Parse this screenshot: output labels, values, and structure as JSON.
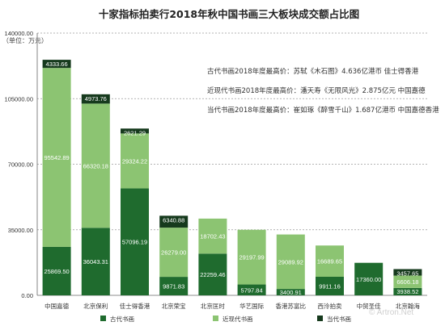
{
  "chart_data": {
    "type": "bar",
    "stacked": true,
    "title": "十家指标拍卖行2018年秋中国书画三大板块成交额占比图",
    "unit_label": "（单位：万元）",
    "ylim": [
      0,
      140000
    ],
    "yticks": [
      "0.00",
      "35000.00",
      "70000.00",
      "105000.00",
      "140000.00"
    ],
    "tick_values": [
      0,
      35000,
      70000,
      105000,
      140000
    ],
    "grid": "horizontal-dashed",
    "legend_position": "bottom",
    "categories": [
      "中国嘉德",
      "北京保利",
      "佳士得香港",
      "北京荣宝",
      "北京匡时",
      "华艺国际",
      "香港苏富比",
      "西泠拍卖",
      "中贸圣佳",
      "北京翰海"
    ],
    "series": [
      {
        "name": "古代书画",
        "color": "#1f6b2e",
        "values": [
          25869.5,
          36043.31,
          57096.19,
          9871.83,
          22259.46,
          5797.84,
          3400.91,
          9911.16,
          17360.0,
          3938.52
        ]
      },
      {
        "name": "近现代书画",
        "color": "#8cc472",
        "values": [
          95542.89,
          66320.18,
          29324.22,
          26279.0,
          18702.43,
          29197.99,
          29089.92,
          16689.65,
          0,
          6606.18
        ]
      },
      {
        "name": "当代书画",
        "color": "#163a1d",
        "values": [
          4333.66,
          4973.76,
          2621.29,
          6340.88,
          0,
          0,
          0,
          0,
          0,
          3457.65
        ]
      }
    ],
    "labels": [
      [
        "25869.50",
        "95542.89",
        "4333.66"
      ],
      [
        "36043.31",
        "66320.18",
        "4973.76"
      ],
      [
        "57096.19",
        "29324.22",
        "2621.29"
      ],
      [
        "9871.83",
        "26279.00",
        "6340.88"
      ],
      [
        "22259.46",
        "18702.43",
        ""
      ],
      [
        "5797.84",
        "29197.99",
        ""
      ],
      [
        "3400.91",
        "29089.92",
        ""
      ],
      [
        "9911.16",
        "16689.65",
        ""
      ],
      [
        "17360.00",
        "",
        ""
      ],
      [
        "3938.52",
        "6606.18",
        "3457.65"
      ]
    ],
    "annotations": [
      "古代书画2018年度最高价：苏轼《木石图》4.636亿港币  佳士得香港",
      "近现代书画2018年度最高价：潘天寿《无限风光》2.875亿元  中国嘉德",
      "当代书画2018年度最高价：崔如琢《醉雪千山》1.687亿港币  中国嘉德香港"
    ]
  },
  "watermark": "© Artron.Net"
}
